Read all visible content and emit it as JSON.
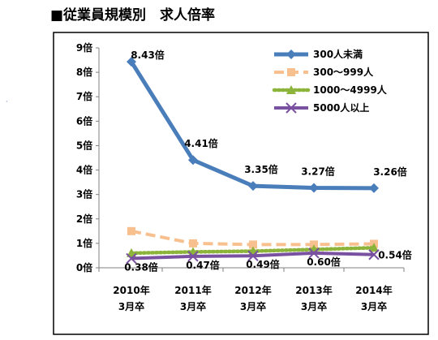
{
  "title": "■従業員規模別　求人倍率",
  "chart_data": {
    "type": "line",
    "title": "■従業員規模別　求人倍率",
    "categories": [
      [
        "2010年",
        "3月卒"
      ],
      [
        "2011年",
        "3月卒"
      ],
      [
        "2012年",
        "3月卒"
      ],
      [
        "2013年",
        "3月卒"
      ],
      [
        "2014年",
        "3月卒"
      ]
    ],
    "y_ticks": [
      "0倍",
      "1倍",
      "2倍",
      "3倍",
      "4倍",
      "5倍",
      "6倍",
      "7倍",
      "8倍",
      "9倍"
    ],
    "ylim": [
      0,
      9
    ],
    "grid": false,
    "legend_position": "top-right",
    "series": [
      {
        "name": "300人未満",
        "values": [
          8.43,
          4.41,
          3.35,
          3.27,
          3.26
        ],
        "labels": [
          "8.43倍",
          "4.41倍",
          "3.35倍",
          "3.27倍",
          "3.26倍"
        ],
        "color": "#4a7ebb",
        "marker": "diamond",
        "dash": "solid"
      },
      {
        "name": "300～999人",
        "values": [
          1.5,
          1.0,
          0.95,
          0.95,
          0.98
        ],
        "color": "#f9c08f",
        "marker": "square",
        "dash": "dashed"
      },
      {
        "name": "1000～4999人",
        "values": [
          0.6,
          0.65,
          0.68,
          0.75,
          0.82
        ],
        "color": "#8cb43a",
        "marker": "triangle",
        "dash": "dotted"
      },
      {
        "name": "5000人以上",
        "values": [
          0.38,
          0.47,
          0.49,
          0.6,
          0.54
        ],
        "labels": [
          "0.38倍",
          "0.47倍",
          "0.49倍",
          "0.60倍",
          "0.54倍"
        ],
        "color": "#7a50a0",
        "marker": "x",
        "dash": "solid"
      }
    ]
  }
}
